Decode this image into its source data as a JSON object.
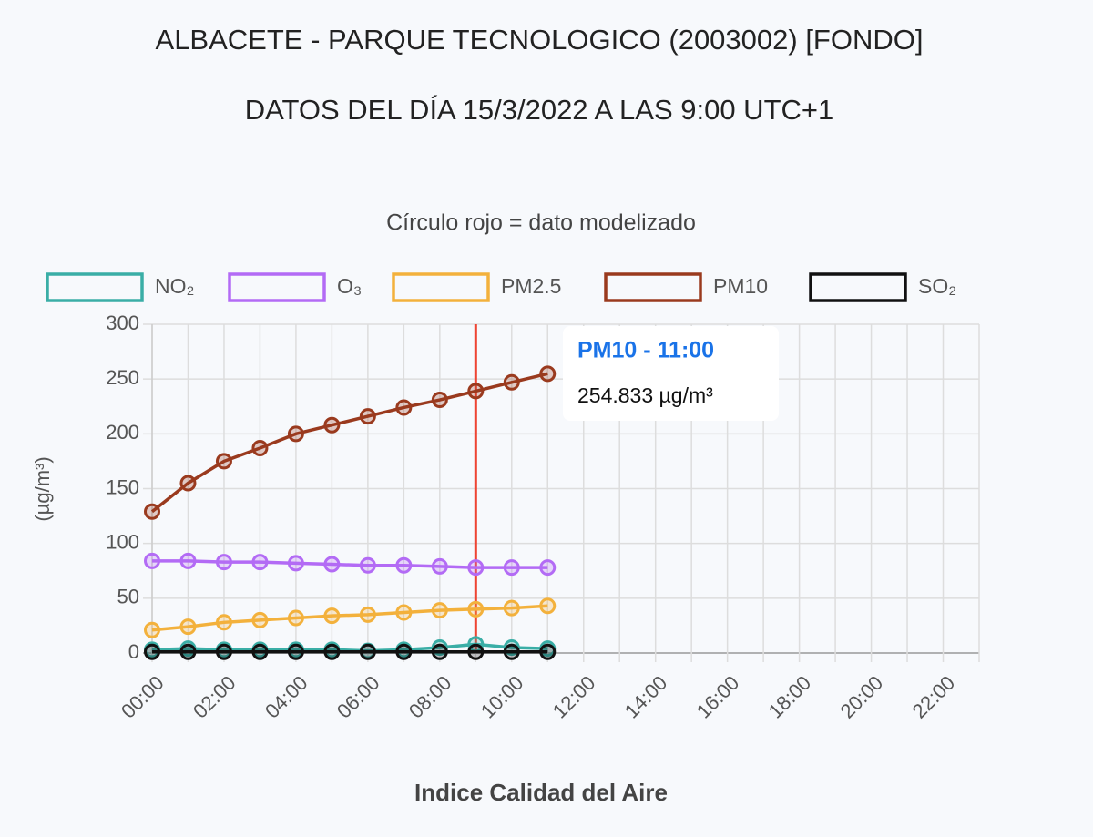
{
  "chart_data": {
    "type": "line",
    "title": "ALBACETE - PARQUE TECNOLOGICO (2003002) [FONDO]",
    "subtitle": "DATOS DEL DÍA 15/3/2022 A LAS 9:00 UTC+1",
    "annotation": "Círculo rojo = dato modelizado",
    "y_label": "(µg/m³)",
    "x_label": "Indice Calidad del Aire",
    "categories": [
      "00:00",
      null,
      "02:00",
      null,
      "04:00",
      null,
      "06:00",
      null,
      "08:00",
      null,
      "10:00",
      null,
      "12:00",
      null,
      "14:00",
      null,
      "16:00",
      null,
      "18:00",
      null,
      "20:00",
      null,
      "22:00",
      null
    ],
    "series": [
      {
        "name": "NO₂",
        "color": "#3aaea6",
        "values": [
          3,
          4,
          3,
          3,
          3,
          3,
          2,
          3,
          5,
          8,
          5,
          4,
          null,
          null,
          null,
          null,
          null,
          null,
          null,
          null,
          null,
          null,
          null,
          null
        ]
      },
      {
        "name": "O₃",
        "color": "#b36bf5",
        "values": [
          84,
          84,
          83,
          83,
          82,
          81,
          80,
          80,
          79,
          78,
          78,
          78,
          null,
          null,
          null,
          null,
          null,
          null,
          null,
          null,
          null,
          null,
          null,
          null
        ]
      },
      {
        "name": "PM2.5",
        "color": "#f3b13c",
        "values": [
          21,
          24,
          28,
          30,
          32,
          34,
          35,
          37,
          39,
          40,
          41,
          43,
          null,
          null,
          null,
          null,
          null,
          null,
          null,
          null,
          null,
          null,
          null,
          null
        ]
      },
      {
        "name": "PM10",
        "color": "#9a3a1e",
        "values": [
          129,
          155,
          175,
          187,
          200,
          208,
          216,
          224,
          231,
          239,
          247,
          254.833,
          null,
          null,
          null,
          null,
          null,
          null,
          null,
          null,
          null,
          null,
          null,
          null
        ]
      },
      {
        "name": "SO₂",
        "color": "#111111",
        "values": [
          1,
          1,
          1,
          1,
          1,
          1,
          1,
          1,
          1,
          1,
          1,
          1,
          null,
          null,
          null,
          null,
          null,
          null,
          null,
          null,
          null,
          null,
          null,
          null
        ]
      }
    ],
    "ylim": [
      0,
      300
    ],
    "yticks": [
      0,
      50,
      100,
      150,
      200,
      250,
      300
    ],
    "grid": true,
    "vline": {
      "category_index": 9,
      "color": "#ee4433"
    },
    "tooltip": {
      "title": "PM10 - 11:00",
      "body": "254.833 µg/m³",
      "title_color": "#1a73e8"
    }
  }
}
